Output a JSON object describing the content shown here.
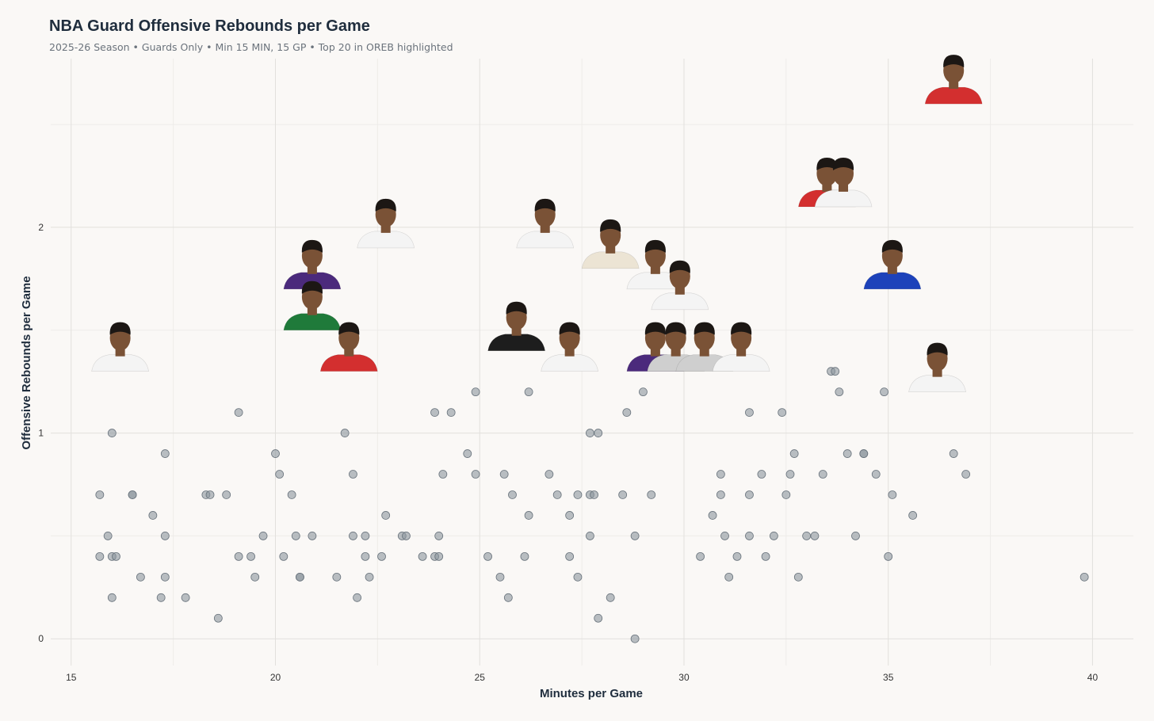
{
  "chart_data": {
    "type": "scatter",
    "title": "NBA Guard Offensive Rebounds per Game",
    "subtitle": "2025-26 Season • Guards Only • Min 15 MIN, 15 GP • Top 20 in OREB highlighted",
    "xlabel": "Minutes per Game",
    "ylabel": "Offensive Rebounds per Game",
    "xlim": [
      14.5,
      41
    ],
    "ylim": [
      -0.13,
      2.82
    ],
    "xticks": [
      15,
      20,
      25,
      30,
      35,
      40
    ],
    "yticks": [
      0,
      1,
      2
    ],
    "grid": true,
    "colors": {
      "dot": "#8c969f",
      "skin": "#7a5236",
      "hair": "#1c1714",
      "jerseys": {
        "white": "#f4f4f4",
        "red": "#d32f2f",
        "black": "#1d1d1d",
        "purple": "#4b2a7c",
        "green": "#1f7a3a",
        "blue": "#1d42ba",
        "cream": "#ece4d4",
        "gray": "#cfcfcf"
      }
    },
    "points": [
      {
        "x": 15.7,
        "y": 0.7
      },
      {
        "x": 15.7,
        "y": 0.4
      },
      {
        "x": 15.9,
        "y": 0.5
      },
      {
        "x": 16.0,
        "y": 1.0
      },
      {
        "x": 16.0,
        "y": 0.4
      },
      {
        "x": 16.0,
        "y": 0.2
      },
      {
        "x": 16.1,
        "y": 0.4
      },
      {
        "x": 16.5,
        "y": 0.7
      },
      {
        "x": 16.5,
        "y": 0.7
      },
      {
        "x": 16.7,
        "y": 0.3
      },
      {
        "x": 17.0,
        "y": 0.6
      },
      {
        "x": 17.2,
        "y": 0.2
      },
      {
        "x": 17.3,
        "y": 0.9
      },
      {
        "x": 17.3,
        "y": 0.5
      },
      {
        "x": 17.3,
        "y": 0.3
      },
      {
        "x": 17.8,
        "y": 0.2
      },
      {
        "x": 18.3,
        "y": 0.7
      },
      {
        "x": 18.4,
        "y": 0.7
      },
      {
        "x": 18.6,
        "y": 0.1
      },
      {
        "x": 18.8,
        "y": 0.7
      },
      {
        "x": 19.1,
        "y": 1.1
      },
      {
        "x": 19.1,
        "y": 0.4
      },
      {
        "x": 19.4,
        "y": 0.4
      },
      {
        "x": 19.5,
        "y": 0.3
      },
      {
        "x": 19.7,
        "y": 0.5
      },
      {
        "x": 20.0,
        "y": 0.9
      },
      {
        "x": 20.1,
        "y": 0.8
      },
      {
        "x": 20.2,
        "y": 0.4
      },
      {
        "x": 20.4,
        "y": 0.7
      },
      {
        "x": 20.5,
        "y": 0.5
      },
      {
        "x": 20.6,
        "y": 0.3
      },
      {
        "x": 20.6,
        "y": 0.3
      },
      {
        "x": 20.9,
        "y": 0.5
      },
      {
        "x": 21.5,
        "y": 0.3
      },
      {
        "x": 21.7,
        "y": 1.0
      },
      {
        "x": 21.9,
        "y": 0.8
      },
      {
        "x": 21.9,
        "y": 0.5
      },
      {
        "x": 22.0,
        "y": 0.2
      },
      {
        "x": 22.2,
        "y": 0.5
      },
      {
        "x": 22.2,
        "y": 0.4
      },
      {
        "x": 22.3,
        "y": 0.3
      },
      {
        "x": 22.6,
        "y": 0.4
      },
      {
        "x": 22.7,
        "y": 0.6
      },
      {
        "x": 23.1,
        "y": 0.5
      },
      {
        "x": 23.2,
        "y": 0.5
      },
      {
        "x": 23.6,
        "y": 0.4
      },
      {
        "x": 23.9,
        "y": 1.1
      },
      {
        "x": 23.9,
        "y": 0.4
      },
      {
        "x": 24.0,
        "y": 0.5
      },
      {
        "x": 24.0,
        "y": 0.4
      },
      {
        "x": 24.1,
        "y": 0.8
      },
      {
        "x": 24.3,
        "y": 1.1
      },
      {
        "x": 24.7,
        "y": 0.9
      },
      {
        "x": 24.9,
        "y": 1.2
      },
      {
        "x": 24.9,
        "y": 0.8
      },
      {
        "x": 25.2,
        "y": 0.4
      },
      {
        "x": 25.5,
        "y": 0.3
      },
      {
        "x": 25.6,
        "y": 0.8
      },
      {
        "x": 25.7,
        "y": 0.2
      },
      {
        "x": 25.8,
        "y": 0.7
      },
      {
        "x": 26.1,
        "y": 0.4
      },
      {
        "x": 26.2,
        "y": 1.2
      },
      {
        "x": 26.2,
        "y": 0.6
      },
      {
        "x": 26.7,
        "y": 0.8
      },
      {
        "x": 26.9,
        "y": 0.7
      },
      {
        "x": 27.2,
        "y": 0.6
      },
      {
        "x": 27.2,
        "y": 0.4
      },
      {
        "x": 27.4,
        "y": 0.7
      },
      {
        "x": 27.4,
        "y": 0.3
      },
      {
        "x": 27.7,
        "y": 1.0
      },
      {
        "x": 27.7,
        "y": 0.7
      },
      {
        "x": 27.7,
        "y": 0.5
      },
      {
        "x": 27.8,
        "y": 0.7
      },
      {
        "x": 27.9,
        "y": 1.0
      },
      {
        "x": 27.9,
        "y": 0.1
      },
      {
        "x": 28.2,
        "y": 0.2
      },
      {
        "x": 28.5,
        "y": 0.7
      },
      {
        "x": 28.6,
        "y": 1.1
      },
      {
        "x": 28.8,
        "y": 0.5
      },
      {
        "x": 28.8,
        "y": 0.0
      },
      {
        "x": 29.0,
        "y": 1.2
      },
      {
        "x": 29.2,
        "y": 0.7
      },
      {
        "x": 30.4,
        "y": 0.4
      },
      {
        "x": 30.7,
        "y": 0.6
      },
      {
        "x": 30.9,
        "y": 0.8
      },
      {
        "x": 30.9,
        "y": 0.7
      },
      {
        "x": 31.0,
        "y": 0.5
      },
      {
        "x": 31.1,
        "y": 0.3
      },
      {
        "x": 31.3,
        "y": 0.4
      },
      {
        "x": 31.6,
        "y": 1.1
      },
      {
        "x": 31.6,
        "y": 0.7
      },
      {
        "x": 31.6,
        "y": 0.5
      },
      {
        "x": 31.9,
        "y": 0.8
      },
      {
        "x": 32.0,
        "y": 0.4
      },
      {
        "x": 32.2,
        "y": 0.5
      },
      {
        "x": 32.4,
        "y": 1.1
      },
      {
        "x": 32.5,
        "y": 0.7
      },
      {
        "x": 32.6,
        "y": 0.8
      },
      {
        "x": 32.7,
        "y": 0.9
      },
      {
        "x": 32.8,
        "y": 0.3
      },
      {
        "x": 33.0,
        "y": 0.5
      },
      {
        "x": 33.2,
        "y": 0.5
      },
      {
        "x": 33.4,
        "y": 0.8
      },
      {
        "x": 33.6,
        "y": 1.3
      },
      {
        "x": 33.7,
        "y": 1.3
      },
      {
        "x": 33.8,
        "y": 1.2
      },
      {
        "x": 34.0,
        "y": 0.9
      },
      {
        "x": 34.2,
        "y": 0.5
      },
      {
        "x": 34.4,
        "y": 0.9
      },
      {
        "x": 34.4,
        "y": 0.9
      },
      {
        "x": 34.7,
        "y": 0.8
      },
      {
        "x": 34.9,
        "y": 1.2
      },
      {
        "x": 35.0,
        "y": 0.4
      },
      {
        "x": 35.1,
        "y": 0.7
      },
      {
        "x": 35.6,
        "y": 0.6
      },
      {
        "x": 36.6,
        "y": 0.9
      },
      {
        "x": 36.9,
        "y": 0.8
      },
      {
        "x": 39.8,
        "y": 0.3
      }
    ],
    "highlighted": [
      {
        "x": 36.6,
        "y": 2.6,
        "jersey": "red"
      },
      {
        "x": 33.5,
        "y": 2.1,
        "jersey": "red"
      },
      {
        "x": 33.9,
        "y": 2.1,
        "jersey": "white"
      },
      {
        "x": 22.7,
        "y": 1.9,
        "jersey": "white"
      },
      {
        "x": 26.6,
        "y": 1.9,
        "jersey": "white"
      },
      {
        "x": 28.2,
        "y": 1.8,
        "jersey": "cream"
      },
      {
        "x": 29.3,
        "y": 1.7,
        "jersey": "white"
      },
      {
        "x": 35.1,
        "y": 1.7,
        "jersey": "blue"
      },
      {
        "x": 20.9,
        "y": 1.7,
        "jersey": "purple"
      },
      {
        "x": 29.9,
        "y": 1.6,
        "jersey": "white"
      },
      {
        "x": 20.9,
        "y": 1.5,
        "jersey": "green"
      },
      {
        "x": 25.9,
        "y": 1.4,
        "jersey": "black"
      },
      {
        "x": 16.2,
        "y": 1.3,
        "jersey": "white"
      },
      {
        "x": 21.8,
        "y": 1.3,
        "jersey": "red"
      },
      {
        "x": 27.2,
        "y": 1.3,
        "jersey": "white"
      },
      {
        "x": 29.3,
        "y": 1.3,
        "jersey": "purple"
      },
      {
        "x": 29.8,
        "y": 1.3,
        "jersey": "gray"
      },
      {
        "x": 30.5,
        "y": 1.3,
        "jersey": "gray"
      },
      {
        "x": 31.4,
        "y": 1.3,
        "jersey": "white"
      },
      {
        "x": 36.2,
        "y": 1.2,
        "jersey": "white"
      }
    ]
  }
}
